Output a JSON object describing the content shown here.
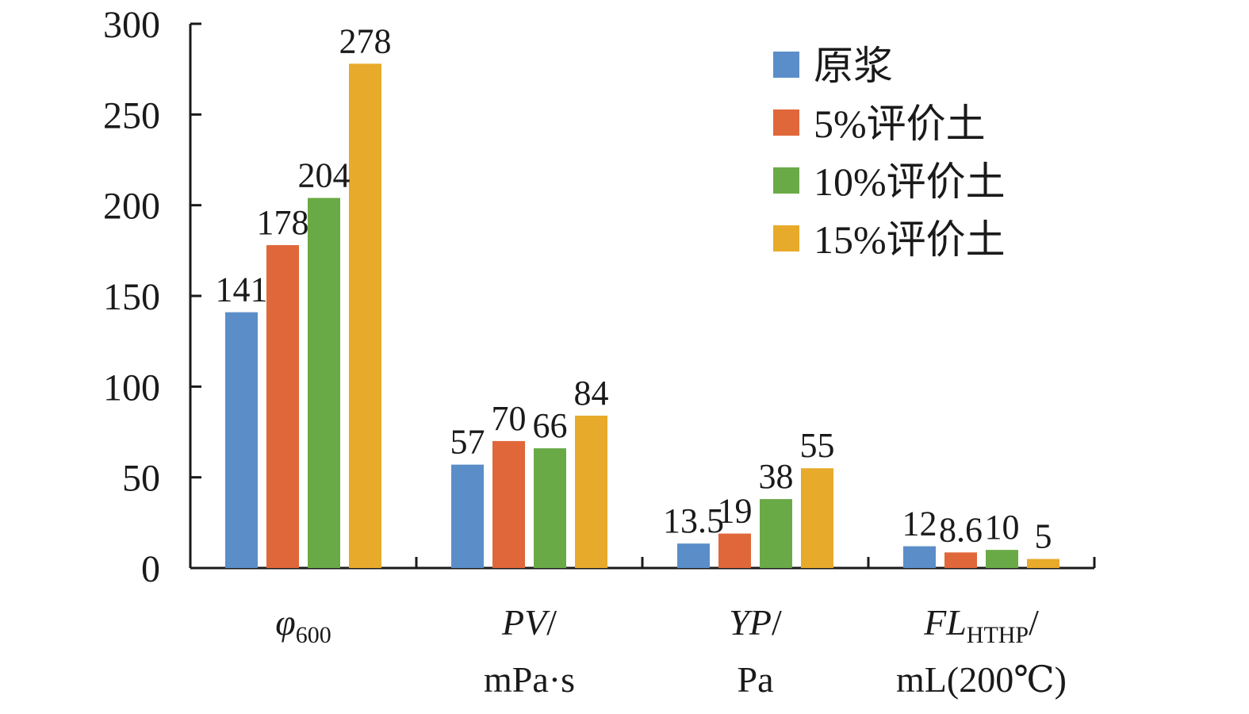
{
  "chart_data": {
    "type": "bar",
    "categories": [
      {
        "main": "φ",
        "sub": "600",
        "unit": ""
      },
      {
        "main": "PV",
        "sub": "",
        "unit": "mPa·s"
      },
      {
        "main": "YP",
        "sub": "",
        "unit": "Pa"
      },
      {
        "main": "FL",
        "sub": "HTHP",
        "unit": "mL(200℃)"
      }
    ],
    "series": [
      {
        "name": "原浆",
        "color": "#5b8ec9",
        "values": [
          141,
          57,
          13.5,
          12
        ]
      },
      {
        "name": "5%评价土",
        "color": "#e0673a",
        "values": [
          178,
          70,
          19,
          8.6
        ]
      },
      {
        "name": "10%评价土",
        "color": "#6aaa46",
        "values": [
          204,
          66,
          38,
          10
        ]
      },
      {
        "name": "15%评价土",
        "color": "#e8aa2a",
        "values": [
          278,
          84,
          55,
          5
        ]
      }
    ],
    "ylim": [
      0,
      300
    ],
    "yticks": [
      0,
      50,
      100,
      150,
      200,
      250,
      300
    ],
    "grid": false,
    "legend": "top-right"
  }
}
